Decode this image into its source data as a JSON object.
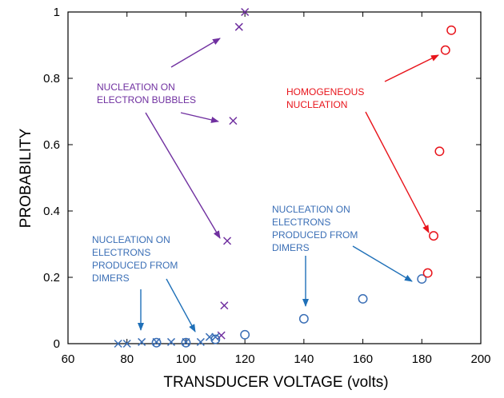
{
  "chart_data": {
    "type": "scatter",
    "xlabel": "TRANSDUCER  VOLTAGE  (volts)",
    "ylabel": "PROBABILITY",
    "xlim": [
      60,
      200
    ],
    "ylim": [
      0,
      1
    ],
    "x_ticks": [
      "60",
      "80",
      "100",
      "120",
      "140",
      "160",
      "180",
      "200"
    ],
    "y_ticks": [
      "0",
      "0.2",
      "0.4",
      "0.6",
      "0.8",
      "1"
    ],
    "grid": false,
    "series": [
      {
        "marker": "x",
        "color": "#7030a0",
        "points": [
          [
            112,
            0.025
          ],
          [
            113,
            0.115
          ],
          [
            114,
            0.31
          ],
          [
            116,
            0.672
          ],
          [
            118,
            0.955
          ],
          [
            120,
            1.0
          ]
        ]
      },
      {
        "marker": "x",
        "color": "#3b6fb6",
        "points": [
          [
            77,
            0.0
          ],
          [
            80,
            0.0
          ],
          [
            85,
            0.005
          ],
          [
            90,
            0.005
          ],
          [
            95,
            0.005
          ],
          [
            100,
            0.005
          ],
          [
            105,
            0.005
          ],
          [
            108,
            0.02
          ],
          [
            110,
            0.02
          ]
        ]
      },
      {
        "marker": "o",
        "color": "#3b6fb6",
        "points": [
          [
            90,
            0.003
          ],
          [
            100,
            0.003
          ],
          [
            110,
            0.013
          ],
          [
            120,
            0.027
          ],
          [
            140,
            0.075
          ],
          [
            160,
            0.135
          ],
          [
            180,
            0.195
          ]
        ]
      },
      {
        "marker": "o",
        "color": "#e8141b",
        "points": [
          [
            182,
            0.213
          ],
          [
            184,
            0.325
          ],
          [
            186,
            0.58
          ],
          [
            188,
            0.885
          ],
          [
            190,
            0.945
          ]
        ]
      }
    ],
    "annotations": [
      {
        "lines": [
          "NUCLEATION  ON",
          "ELECTRON BUBBLES"
        ],
        "color": "#7030a0"
      },
      {
        "lines": [
          "HOMOGENEOUS",
          "NUCLEATION"
        ],
        "color": "#e8141b"
      },
      {
        "lines": [
          "NUCLEATION ON",
          "ELECTRONS",
          "PRODUCED FROM",
          "DIMERS"
        ],
        "color": "#3b6fb6"
      },
      {
        "lines": [
          "NUCLEATION ON",
          "ELECTRONS",
          "PRODUCED FROM",
          "DIMERS"
        ],
        "color": "#3b6fb6"
      }
    ]
  }
}
